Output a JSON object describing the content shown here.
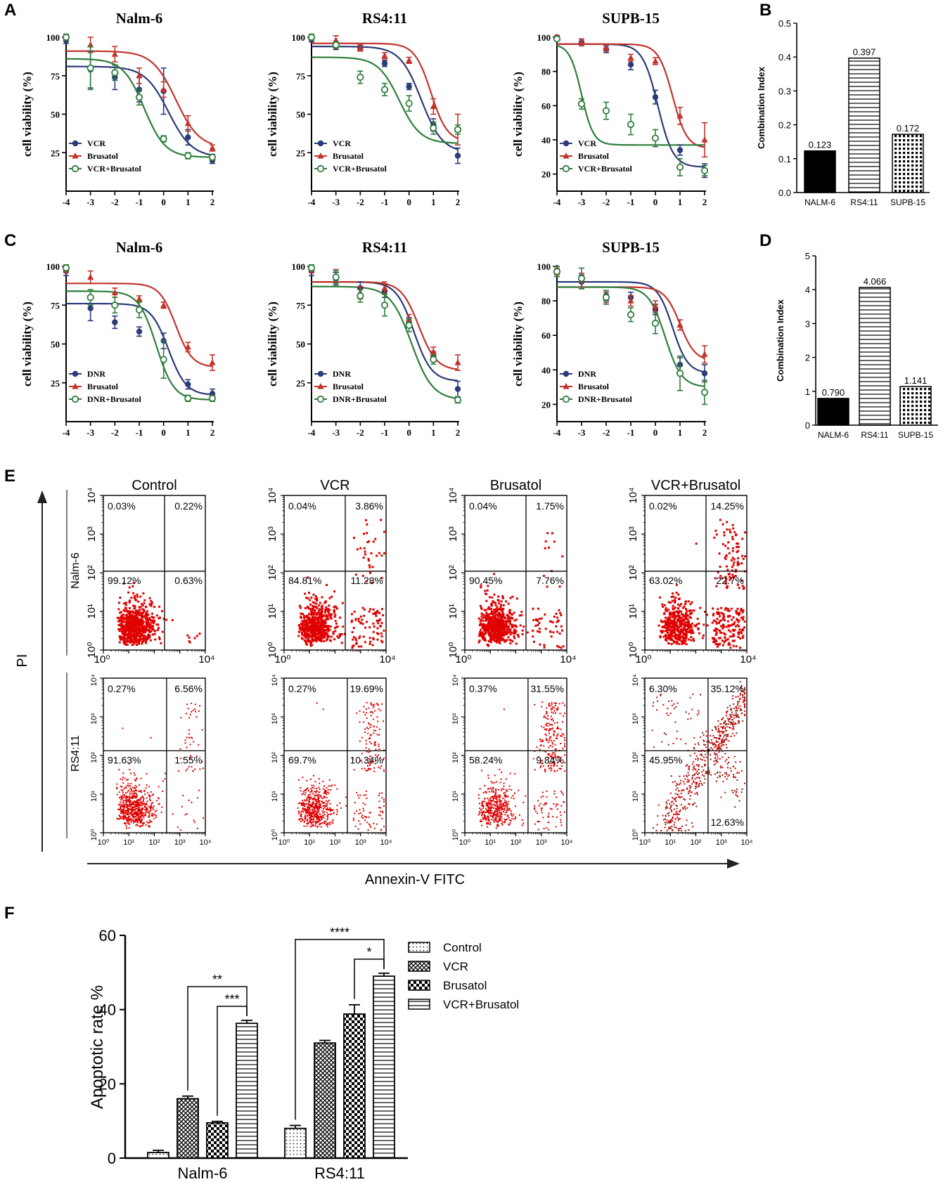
{
  "colors": {
    "single": "#2b3a78",
    "brusatol": "#c1342d",
    "combo": "#2e7d3c",
    "dot": "#e00000",
    "dotDark": "#8b1a10"
  },
  "chart_data": [
    {
      "panel": "A",
      "type": "line",
      "title": "Nalm-6",
      "xlabel": "",
      "ylabel": "cell viability (%)",
      "xlim": [
        -4,
        2
      ],
      "ylim": [
        0,
        100
      ],
      "xticks": [
        "-4",
        "-3",
        "-2",
        "-1",
        "0",
        "1",
        "2"
      ],
      "yticks": [
        "25",
        "50",
        "75",
        "100"
      ],
      "x": [
        -4,
        -3,
        -2,
        -1,
        0,
        1,
        2
      ],
      "series": [
        {
          "name": "VCR",
          "marker": "circle",
          "values": [
            98,
            79,
            74,
            66,
            65,
            35,
            20
          ],
          "errors": [
            2,
            12,
            8,
            8,
            15,
            5,
            2
          ],
          "fit": {
            "top": 81,
            "bottom": 22,
            "ec50": 0.2,
            "hill": 0.9
          }
        },
        {
          "name": "Brusatol",
          "marker": "triangle",
          "values": [
            100,
            95,
            89,
            75,
            66,
            44,
            28
          ],
          "errors": [
            2,
            5,
            5,
            5,
            5,
            5,
            2
          ],
          "fit": {
            "top": 91,
            "bottom": 28,
            "ec50": 0.5,
            "hill": 0.9
          }
        },
        {
          "name": "VCR+Brusatol",
          "marker": "open-circle",
          "values": [
            100,
            80,
            77,
            61,
            34,
            23,
            22
          ],
          "errors": [
            2,
            14,
            5,
            5,
            2,
            2,
            2
          ],
          "fit": {
            "top": 86,
            "bottom": 22,
            "ec50": -0.8,
            "hill": 1.0
          }
        }
      ]
    },
    {
      "panel": "A",
      "type": "line",
      "title": "RS4:11",
      "xlabel": "",
      "ylabel": "cell viability (%)",
      "xlim": [
        -4,
        2
      ],
      "ylim": [
        0,
        100
      ],
      "xticks": [
        "-4",
        "-3",
        "-2",
        "-1",
        "0",
        "1",
        "2"
      ],
      "yticks": [
        "25",
        "50",
        "75",
        "100"
      ],
      "x": [
        -4,
        -3,
        -2,
        -1,
        0,
        1,
        2
      ],
      "series": [
        {
          "name": "VCR",
          "marker": "circle",
          "values": [
            99,
            94,
            93,
            83,
            68,
            43,
            23
          ],
          "errors": [
            2,
            2,
            2,
            2,
            2,
            4,
            5
          ],
          "fit": {
            "top": 94,
            "bottom": 25,
            "ec50": 0.5,
            "hill": 1.0
          }
        },
        {
          "name": "Brusatol",
          "marker": "triangle",
          "values": [
            100,
            98,
            93,
            88,
            85,
            55,
            40
          ],
          "errors": [
            2,
            3,
            2,
            2,
            2,
            5,
            10
          ],
          "fit": {
            "top": 96,
            "bottom": 32,
            "ec50": 0.9,
            "hill": 1.3
          }
        },
        {
          "name": "VCR+Brusatol",
          "marker": "open-circle",
          "values": [
            100,
            95,
            74,
            66,
            57,
            41,
            40
          ],
          "errors": [
            2,
            2,
            4,
            4,
            5,
            4,
            3
          ],
          "fit": {
            "top": 87,
            "bottom": 31,
            "ec50": -0.4,
            "hill": 1.0
          }
        }
      ]
    },
    {
      "panel": "A",
      "type": "line",
      "title": "SUPB-15",
      "xlabel": "",
      "ylabel": "cell viability (%)",
      "xlim": [
        -4,
        2
      ],
      "ylim": [
        10,
        100
      ],
      "xticks": [
        "-4",
        "-3",
        "-2",
        "-1",
        "0",
        "1",
        "2"
      ],
      "yticks": [
        "20",
        "40",
        "60",
        "80",
        "100"
      ],
      "x": [
        -4,
        -3,
        -2,
        -1,
        0,
        1,
        2
      ],
      "series": [
        {
          "name": "VCR",
          "marker": "circle",
          "values": [
            100,
            97,
            93,
            84,
            65,
            34,
            22
          ],
          "errors": [
            1,
            2,
            2,
            3,
            4,
            3,
            4
          ],
          "fit": {
            "top": 96,
            "bottom": 24,
            "ec50": 0.1,
            "hill": 1.4
          }
        },
        {
          "name": "Brusatol",
          "marker": "triangle",
          "values": [
            100,
            97,
            94,
            88,
            86,
            54,
            40
          ],
          "errors": [
            1,
            2,
            2,
            2,
            2,
            5,
            10
          ],
          "fit": {
            "top": 96,
            "bottom": 35,
            "ec50": 0.7,
            "hill": 1.5
          }
        },
        {
          "name": "VCR+Brusatol",
          "marker": "open-circle",
          "values": [
            99,
            61,
            57,
            49,
            41,
            24,
            22
          ],
          "errors": [
            1,
            3,
            5,
            6,
            5,
            5,
            3
          ],
          "fit": {
            "top": 96,
            "bottom": 37,
            "ec50": -3.0,
            "hill": 1.8
          }
        }
      ]
    },
    {
      "panel": "B",
      "type": "bar",
      "title": "",
      "xlabel": "",
      "ylabel": "Combination Index",
      "ylim": [
        0,
        0.5
      ],
      "yticks": [
        "0.0",
        "0.1",
        "0.2",
        "0.3",
        "0.4",
        "0.5"
      ],
      "categories": [
        "NALM-6",
        "RS4:11",
        "SUPB-15"
      ],
      "values": [
        0.123,
        0.397,
        0.172
      ],
      "labels": [
        "0.123",
        "0.397",
        "0.172"
      ],
      "patterns": [
        "solid",
        "hlines",
        "grid"
      ]
    },
    {
      "panel": "C",
      "type": "line",
      "title": "Nalm-6",
      "xlabel": "",
      "ylabel": "cell viability (%)",
      "xlim": [
        -4,
        2
      ],
      "ylim": [
        0,
        100
      ],
      "xticks": [
        "-4",
        "-3",
        "-2",
        "-1",
        "0",
        "1",
        "2"
      ],
      "yticks": [
        "25",
        "50",
        "75",
        "100"
      ],
      "x": [
        -4,
        -3,
        -2,
        -1,
        0,
        1,
        2
      ],
      "series": [
        {
          "name": "DNR",
          "marker": "circle",
          "values": [
            97,
            73,
            64,
            58,
            52,
            24,
            18
          ],
          "errors": [
            3,
            8,
            4,
            3,
            5,
            3,
            3
          ],
          "fit": {
            "top": 76,
            "bottom": 17,
            "ec50": 0.2,
            "hill": 1.2
          }
        },
        {
          "name": "Brusatol",
          "marker": "triangle",
          "values": [
            98,
            93,
            83,
            79,
            75,
            48,
            38
          ],
          "errors": [
            2,
            4,
            3,
            2,
            2,
            3,
            5
          ],
          "fit": {
            "top": 89,
            "bottom": 35,
            "ec50": 0.5,
            "hill": 1.3
          }
        },
        {
          "name": "DNR+Brusatol",
          "marker": "open-circle",
          "values": [
            99,
            80,
            75,
            72,
            40,
            15,
            15
          ],
          "errors": [
            2,
            5,
            5,
            5,
            12,
            2,
            2
          ],
          "fit": {
            "top": 84,
            "bottom": 14,
            "ec50": -0.3,
            "hill": 1.2
          }
        }
      ]
    },
    {
      "panel": "C",
      "type": "line",
      "title": "RS4:11",
      "xlabel": "",
      "ylabel": "cell viability (%)",
      "xlim": [
        -4,
        2
      ],
      "ylim": [
        0,
        100
      ],
      "xticks": [
        "-4",
        "-3",
        "-2",
        "-1",
        "0",
        "1",
        "2"
      ],
      "yticks": [
        "25",
        "50",
        "75",
        "100"
      ],
      "x": [
        -4,
        -3,
        -2,
        -1,
        0,
        1,
        2
      ],
      "series": [
        {
          "name": "DNR",
          "marker": "circle",
          "values": [
            97,
            92,
            86,
            84,
            64,
            42,
            21
          ],
          "errors": [
            3,
            4,
            4,
            4,
            3,
            3,
            5
          ],
          "fit": {
            "top": 90,
            "bottom": 26,
            "ec50": 0.2,
            "hill": 1.2
          }
        },
        {
          "name": "Brusatol",
          "marker": "triangle",
          "values": [
            98,
            94,
            83,
            86,
            66,
            45,
            38
          ],
          "errors": [
            2,
            4,
            4,
            4,
            3,
            3,
            5
          ],
          "fit": {
            "top": 90,
            "bottom": 33,
            "ec50": 0.4,
            "hill": 1.2
          }
        },
        {
          "name": "DNR+Brusatol",
          "marker": "open-circle",
          "values": [
            99,
            93,
            81,
            75,
            62,
            40,
            14
          ],
          "errors": [
            2,
            4,
            4,
            7,
            4,
            3,
            2
          ],
          "fit": {
            "top": 87,
            "bottom": 14,
            "ec50": 0.1,
            "hill": 1.0
          }
        }
      ]
    },
    {
      "panel": "C",
      "type": "line",
      "title": "SUPB-15",
      "xlabel": "",
      "ylabel": "cell viability (%)",
      "xlim": [
        -4,
        2
      ],
      "ylim": [
        10,
        100
      ],
      "xticks": [
        "-4",
        "-3",
        "-2",
        "-1",
        "0",
        "1",
        "2"
      ],
      "yticks": [
        "20",
        "40",
        "60",
        "80",
        "100"
      ],
      "x": [
        -4,
        -3,
        -2,
        -1,
        0,
        1,
        2
      ],
      "series": [
        {
          "name": "DNR",
          "marker": "circle",
          "values": [
            97,
            91,
            83,
            82,
            75,
            43,
            38
          ],
          "errors": [
            3,
            4,
            3,
            3,
            3,
            4,
            5
          ],
          "fit": {
            "top": 91,
            "bottom": 38,
            "ec50": 0.7,
            "hill": 1.4
          }
        },
        {
          "name": "Brusatol",
          "marker": "triangle",
          "values": [
            97,
            92,
            82,
            80,
            77,
            66,
            49
          ],
          "errors": [
            2,
            4,
            3,
            3,
            3,
            3,
            5
          ],
          "fit": {
            "top": 88,
            "bottom": 45,
            "ec50": 1.0,
            "hill": 1.4
          }
        },
        {
          "name": "DNR+Brusatol",
          "marker": "open-circle",
          "values": [
            97,
            93,
            82,
            72,
            67,
            38,
            27
          ],
          "errors": [
            3,
            6,
            4,
            4,
            6,
            10,
            7
          ],
          "fit": {
            "top": 88,
            "bottom": 30,
            "ec50": 0.4,
            "hill": 1.3
          }
        }
      ]
    },
    {
      "panel": "D",
      "type": "bar",
      "title": "",
      "xlabel": "",
      "ylabel": "Combination Index",
      "ylim": [
        0,
        5
      ],
      "yticks": [
        "0",
        "1",
        "2",
        "3",
        "4",
        "5"
      ],
      "categories": [
        "NALM-6",
        "RS4:11",
        "SUPB-15"
      ],
      "values": [
        0.79,
        4.066,
        1.141
      ],
      "labels": [
        "0.790",
        "4.066",
        "1.141"
      ],
      "patterns": [
        "solid",
        "hlines",
        "grid"
      ]
    },
    {
      "panel": "E",
      "type": "scatter",
      "xlabel": "Annexin-V FITC",
      "ylabel": "PI",
      "xlim": [
        0,
        4
      ],
      "ylim": [
        0,
        4
      ],
      "columns": [
        "Control",
        "VCR",
        "Brusatol",
        "VCR+Brusatol"
      ],
      "rows": [
        "Nalm-6",
        "RS4:11"
      ],
      "quadrants": [
        [
          {
            "ul": "0.03%",
            "ur": "0.22%",
            "ll": "99.12%",
            "lr": "0.63%"
          },
          {
            "ul": "0.04%",
            "ur": "3.86%",
            "ll": "84.81%",
            "lr": "11.28%"
          },
          {
            "ul": "0.04%",
            "ur": "1.75%",
            "ll": "90.45%",
            "lr": "7.76%"
          },
          {
            "ul": "0.02%",
            "ur": "14.25%",
            "ll": "63.02%",
            "lr": "22.7%"
          }
        ],
        [
          {
            "ul": "0.27%",
            "ur": "6.56%",
            "ll": "91.63%",
            "lr": "1.55%"
          },
          {
            "ul": "0.27%",
            "ur": "19.69%",
            "ll": "69.7%",
            "lr": "10.34%"
          },
          {
            "ul": "0.37%",
            "ur": "31.55%",
            "ll": "58.24%",
            "lr": "9.84%"
          },
          {
            "ul": "6.30%",
            "ur": "35.12%",
            "ll": "45.95%",
            "lr": "12.63%"
          }
        ]
      ]
    },
    {
      "panel": "F",
      "type": "bar",
      "title": "",
      "xlabel": "",
      "ylabel": "Apoptotic rate %",
      "ylim": [
        0,
        60
      ],
      "yticks": [
        "0",
        "20",
        "40",
        "60"
      ],
      "categories": [
        "Nalm-6",
        "RS4:11"
      ],
      "series": [
        {
          "name": "Control",
          "pattern": "dots",
          "values": [
            1.5,
            8.0
          ],
          "errors": [
            0.6,
            0.8
          ]
        },
        {
          "name": "VCR",
          "pattern": "crosshatch",
          "values": [
            16.0,
            31.0
          ],
          "errors": [
            0.7,
            0.7
          ]
        },
        {
          "name": "Brusatol",
          "pattern": "checker",
          "values": [
            9.5,
            38.8
          ],
          "errors": [
            0.4,
            2.5
          ]
        },
        {
          "name": "VCR+Brusatol",
          "pattern": "hlines",
          "values": [
            36.3,
            49.0
          ],
          "errors": [
            0.8,
            0.8
          ]
        }
      ],
      "significance": [
        {
          "group": 0,
          "from": 1,
          "to": 3,
          "label": "**"
        },
        {
          "group": 0,
          "from": 2,
          "to": 3,
          "label": "***"
        },
        {
          "group": 1,
          "from": 0,
          "to": 3,
          "label": "****"
        },
        {
          "group": 1,
          "from": 2,
          "to": 3,
          "label": "*"
        }
      ]
    }
  ],
  "panel_letters": [
    "A",
    "B",
    "C",
    "D",
    "E",
    "F"
  ]
}
